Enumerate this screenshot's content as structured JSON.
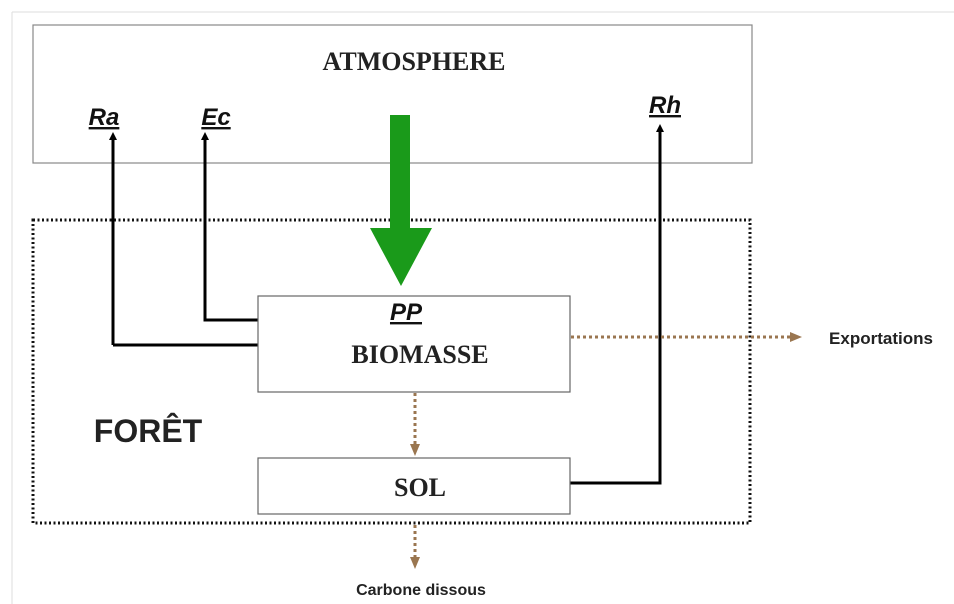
{
  "nodes": {
    "atmosphere": {
      "label": "ATMOSPHERE"
    },
    "biomasse": {
      "label": "BIOMASSE",
      "sublabel": "PP"
    },
    "sol": {
      "label": "SOL"
    },
    "foret": {
      "label": "FORÊT"
    }
  },
  "flows": {
    "ra": {
      "label": "Ra"
    },
    "ec": {
      "label": "Ec"
    },
    "rh": {
      "label": "Rh"
    },
    "exportations": {
      "label": "Exportations"
    },
    "carbone_dissous": {
      "label": "Carbone dissous"
    }
  }
}
